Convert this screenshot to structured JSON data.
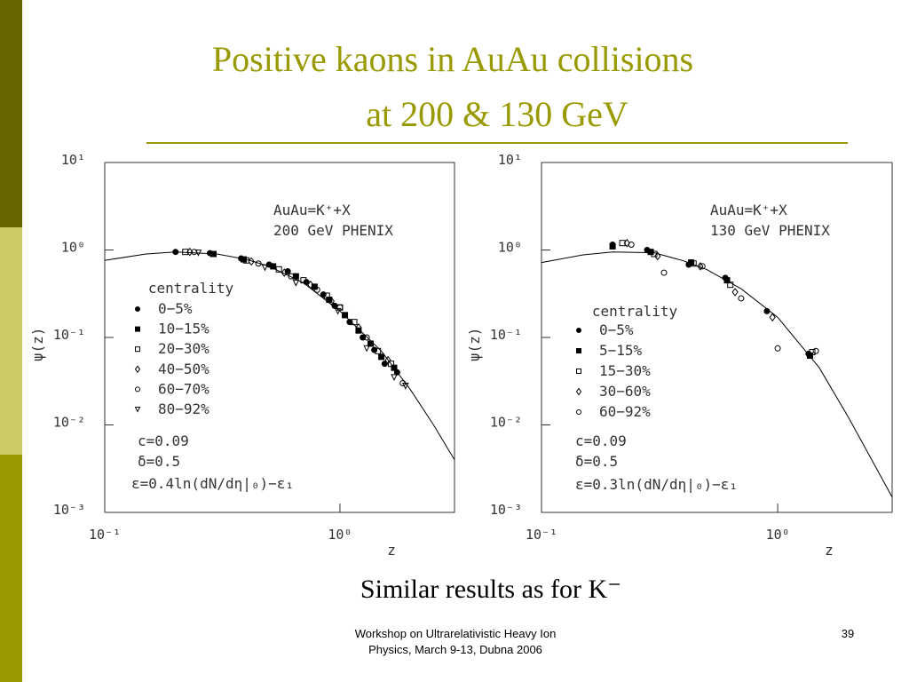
{
  "slide": {
    "title": [
      "Positive kaons in AuAu collisions",
      "at 200 & 130 GeV"
    ],
    "subtitle": "Similar results as for K⁻",
    "footer": [
      "Workshop on Ultrarelativistic Heavy Ion",
      "Physics, March 9-13, Dubna 2006"
    ],
    "page": 39
  },
  "chart_data": [
    {
      "type": "scatter",
      "xlabel": "z",
      "ylabel": "ψ(z)",
      "log_x": true,
      "log_y": true,
      "xlim": [
        0.1,
        3.07
      ],
      "ylim": [
        0.001,
        10
      ],
      "xticks": [
        {
          "value": 0.1,
          "label": "10⁻¹"
        },
        {
          "value": 1,
          "label": "10⁰"
        }
      ],
      "yticks": [
        {
          "value": 0.001,
          "label": "10⁻³"
        },
        {
          "value": 0.01,
          "label": "10⁻²"
        },
        {
          "value": 0.1,
          "label": "10⁻¹"
        },
        {
          "value": 1,
          "label": "10⁰"
        },
        {
          "value": 10,
          "label": "10¹"
        }
      ],
      "legend_title": "centrality",
      "annotations": [
        "AuAu=K⁺+X",
        "200 GeV PHENIX",
        "c=0.09",
        "δ=0.5",
        "ε=0.4ln(dN/dη|₀)−ε₁"
      ],
      "series": [
        {
          "name": "0−5%",
          "color": "#000000",
          "marker": "circle-filled",
          "x": [
            0.2,
            0.28,
            0.38,
            0.5,
            0.6,
            0.72,
            0.85,
            0.95,
            1.1,
            1.25,
            1.4,
            1.55,
            1.75
          ],
          "values": [
            0.95,
            0.92,
            0.8,
            0.68,
            0.57,
            0.43,
            0.31,
            0.23,
            0.15,
            0.1,
            0.072,
            0.05,
            0.04
          ]
        },
        {
          "name": "10−15%",
          "color": "#000000",
          "marker": "square-filled",
          "x": [
            0.29,
            0.39,
            0.52,
            0.65,
            0.78,
            0.9,
            1.05,
            1.2,
            1.35,
            1.5,
            1.7
          ],
          "values": [
            0.9,
            0.78,
            0.65,
            0.5,
            0.38,
            0.27,
            0.18,
            0.12,
            0.085,
            0.06,
            0.045
          ]
        },
        {
          "name": "20−30%",
          "color": "#000000",
          "marker": "square-open",
          "x": [
            0.22,
            0.4,
            0.55,
            0.7,
            0.88,
            1.0,
            1.15,
            1.45,
            1.65
          ],
          "values": [
            0.95,
            0.76,
            0.6,
            0.45,
            0.3,
            0.22,
            0.15,
            0.07,
            0.05
          ]
        },
        {
          "name": "40−50%",
          "color": "#000000",
          "marker": "diamond-open",
          "x": [
            0.23,
            0.42,
            0.58,
            0.75,
            0.92,
            1.2,
            1.6
          ],
          "values": [
            0.95,
            0.74,
            0.55,
            0.4,
            0.26,
            0.13,
            0.055
          ]
        },
        {
          "name": "60−70%",
          "color": "#000000",
          "marker": "circle-open",
          "x": [
            0.24,
            0.45,
            0.62,
            0.8,
            1.0,
            1.3,
            1.85
          ],
          "values": [
            0.95,
            0.7,
            0.5,
            0.35,
            0.22,
            0.1,
            0.03
          ]
        },
        {
          "name": "80−92%",
          "color": "#000000",
          "marker": "triangle-open",
          "x": [
            0.25,
            0.48,
            0.65,
            0.98,
            1.3,
            1.7,
            1.9
          ],
          "values": [
            0.93,
            0.63,
            0.42,
            0.2,
            0.075,
            0.035,
            0.028
          ]
        }
      ],
      "fit": {
        "color": "#000000",
        "x": [
          0.1,
          0.15,
          0.2,
          0.3,
          0.4,
          0.5,
          0.7,
          1.0,
          1.5,
          2.0,
          2.5,
          3.07
        ],
        "values": [
          0.76,
          0.9,
          0.95,
          0.9,
          0.78,
          0.65,
          0.42,
          0.2,
          0.07,
          0.025,
          0.01,
          0.004
        ]
      }
    },
    {
      "type": "scatter",
      "xlabel": "z",
      "ylabel": "ψ(z)",
      "log_x": true,
      "log_y": true,
      "xlim": [
        0.1,
        3.05
      ],
      "ylim": [
        0.001,
        10
      ],
      "xticks": [
        {
          "value": 0.1,
          "label": "10⁻¹"
        },
        {
          "value": 1,
          "label": "10⁰"
        }
      ],
      "yticks": [
        {
          "value": 0.001,
          "label": "10⁻³"
        },
        {
          "value": 0.01,
          "label": "10⁻²"
        },
        {
          "value": 0.1,
          "label": "10⁻¹"
        },
        {
          "value": 1,
          "label": "10⁰"
        },
        {
          "value": 10,
          "label": "10¹"
        }
      ],
      "legend_title": "centrality",
      "annotations": [
        "AuAu=K⁺+X",
        "130 GeV PHENIX",
        "c=0.09",
        "δ=0.5",
        "ε=0.3ln(dN/dη|₀)−ε₁"
      ],
      "series": [
        {
          "name": "0−5%",
          "color": "#000000",
          "marker": "circle-filled",
          "x": [
            0.2,
            0.28,
            0.42,
            0.6,
            0.9,
            1.35
          ],
          "values": [
            1.15,
            1.0,
            0.68,
            0.48,
            0.2,
            0.065
          ]
        },
        {
          "name": "5−15%",
          "color": "#000000",
          "marker": "square-filled",
          "x": [
            0.2,
            0.29,
            0.43,
            0.61,
            1.37
          ],
          "values": [
            1.1,
            0.95,
            0.72,
            0.45,
            0.062
          ]
        },
        {
          "name": "15−30%",
          "color": "#000000",
          "marker": "square-open",
          "x": [
            0.22,
            0.3,
            0.44,
            0.63,
            1.4
          ],
          "values": [
            1.2,
            0.9,
            0.7,
            0.4,
            0.068
          ]
        },
        {
          "name": "30−60%",
          "color": "#000000",
          "marker": "diamond-open",
          "x": [
            0.23,
            0.31,
            0.47,
            0.66,
            0.95
          ],
          "values": [
            1.2,
            0.85,
            0.65,
            0.33,
            0.17
          ]
        },
        {
          "name": "60−92%",
          "color": "#000000",
          "marker": "circle-open",
          "x": [
            0.24,
            0.33,
            0.48,
            0.7,
            1.0,
            1.45
          ],
          "values": [
            1.15,
            0.55,
            0.65,
            0.28,
            0.075,
            0.07
          ]
        }
      ],
      "fit": {
        "color": "#000000",
        "x": [
          0.1,
          0.15,
          0.2,
          0.3,
          0.4,
          0.5,
          0.7,
          1.0,
          1.5,
          2.0,
          2.5,
          3.05
        ],
        "values": [
          0.72,
          0.88,
          0.95,
          0.93,
          0.75,
          0.6,
          0.36,
          0.17,
          0.045,
          0.012,
          0.004,
          0.0015
        ]
      }
    }
  ]
}
